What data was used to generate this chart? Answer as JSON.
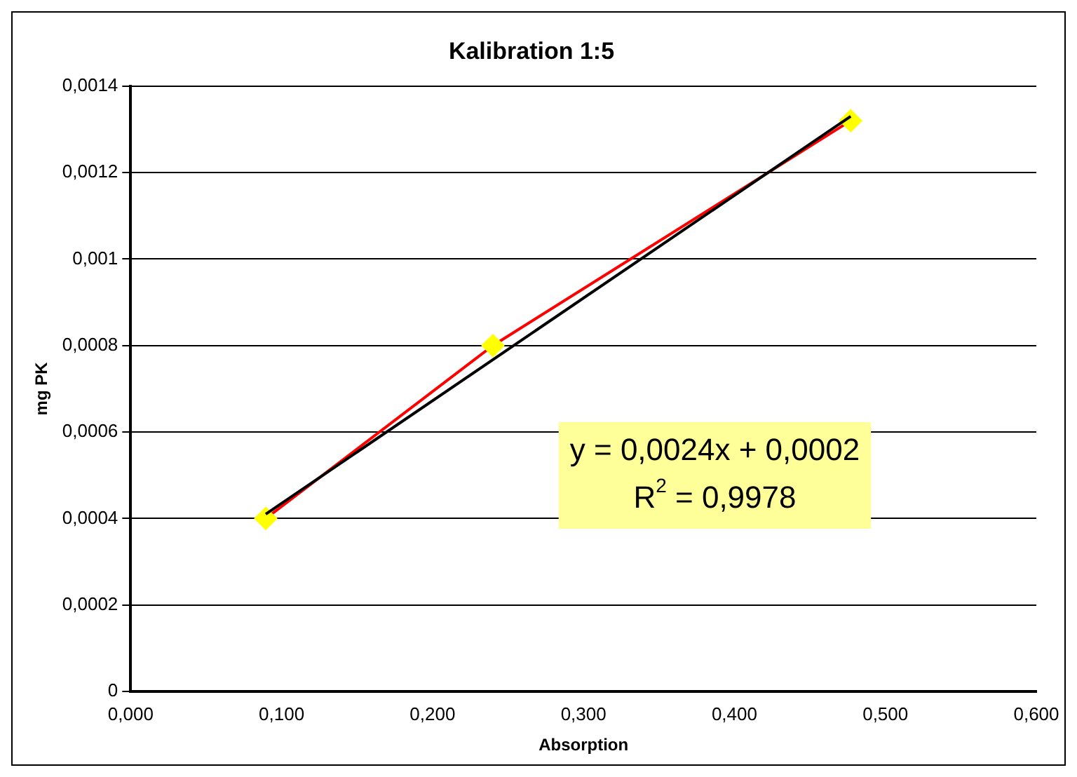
{
  "chart_data": {
    "type": "scatter",
    "title": "Kalibration 1:5",
    "xlabel": "Absorption",
    "ylabel": "mg PK",
    "series": [
      {
        "type": "line",
        "color": "#ff0000",
        "marker": "diamond",
        "x": [
          0.0895,
          0.24,
          0.477
        ],
        "values": [
          0.0004,
          0.0008,
          0.00132
        ]
      },
      {
        "type": "line",
        "color": "#000000",
        "marker": "none",
        "x": [
          0.0895,
          0.477
        ],
        "values": [
          0.00041,
          0.00133
        ]
      }
    ],
    "xlim": [
      0,
      0.6
    ],
    "xticks": [
      {
        "value": 0,
        "label": "0,000"
      },
      {
        "value": 0.1,
        "label": "0,100"
      },
      {
        "value": 0.2,
        "label": "0,200"
      },
      {
        "value": 0.3,
        "label": "0,300"
      },
      {
        "value": 0.4,
        "label": "0,400"
      },
      {
        "value": 0.5,
        "label": "0,500"
      },
      {
        "value": 0.6,
        "label": "0,600"
      }
    ],
    "ylim": [
      0,
      0.0014
    ],
    "yticks": [
      0,
      {
        "value": 0.0002,
        "label": "0,0002"
      },
      {
        "value": 0.0004,
        "label": "0,0004"
      },
      {
        "value": 0.0006,
        "label": "0,0006"
      },
      {
        "value": 0.0008,
        "label": "0,0008"
      },
      {
        "value": 0.001,
        "label": "0,001"
      },
      {
        "value": 0.0012,
        "label": "0,0012"
      },
      {
        "value": 0.0014,
        "label": "0,0014"
      }
    ],
    "grid": "y",
    "annotations": [
      "y = 0,0024x + 0,0002",
      "R$^{2}$ = 0,9978"
    ]
  }
}
